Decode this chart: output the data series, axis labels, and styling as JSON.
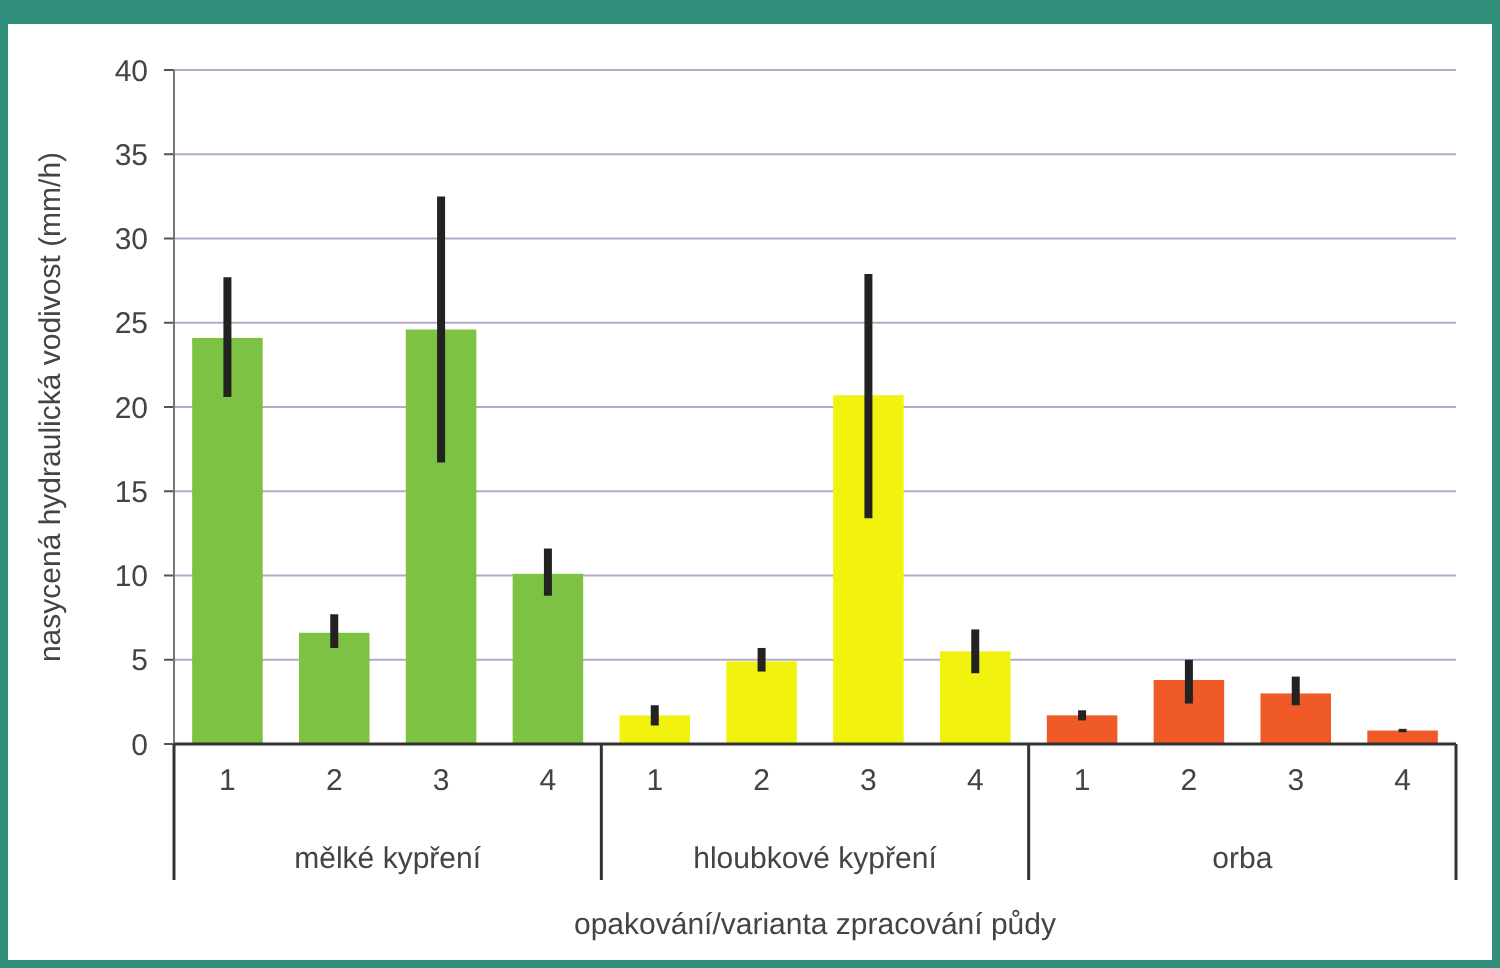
{
  "chart_data": {
    "type": "bar",
    "xlabel": "opakování/varianta zpracování půdy",
    "ylabel": "nasycená hydraulická vodivost (mm/h)",
    "categories": [
      "1",
      "2",
      "3",
      "4",
      "1",
      "2",
      "3",
      "4",
      "1",
      "2",
      "3",
      "4"
    ],
    "values": [
      24.1,
      6.6,
      24.6,
      10.1,
      1.7,
      4.9,
      20.7,
      5.5,
      1.7,
      3.8,
      3.0,
      0.8
    ],
    "colors": [
      "#7dc242",
      "#7dc242",
      "#7dc242",
      "#7dc242",
      "#f2f20f",
      "#f2f20f",
      "#f2f20f",
      "#f2f20f",
      "#f05a28",
      "#f05a28",
      "#f05a28",
      "#f05a28"
    ],
    "errors": [
      [
        20.6,
        27.7
      ],
      [
        5.7,
        7.7
      ],
      [
        16.7,
        32.5
      ],
      [
        8.8,
        11.6
      ],
      [
        1.1,
        2.3
      ],
      [
        4.3,
        5.7
      ],
      [
        13.4,
        27.9
      ],
      [
        4.2,
        6.8
      ],
      [
        1.4,
        2.0
      ],
      [
        2.4,
        5.0
      ],
      [
        2.3,
        4.0
      ],
      [
        0.7,
        0.9
      ]
    ],
    "annotations": [
      "mělké kypření",
      "hloubkové kypření",
      "orba"
    ],
    "ylim": [
      0,
      40
    ],
    "yticks": [
      0,
      5,
      10,
      15,
      20,
      25,
      30,
      35,
      40
    ],
    "grid": "y"
  }
}
